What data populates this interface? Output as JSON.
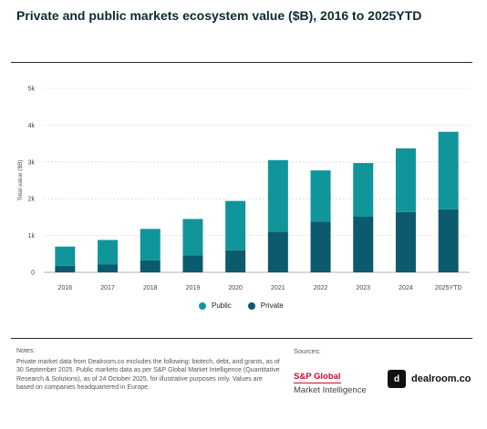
{
  "chart_data": {
    "type": "bar",
    "stacked": true,
    "title": "Private and public markets ecosystem value ($B), 2016 to 2025YTD",
    "xlabel": "",
    "ylabel": "Total value ($B)",
    "ylim": [
      0,
      5000
    ],
    "yticks": [
      0,
      1000,
      2000,
      3000,
      4000,
      5000
    ],
    "ytick_labels": [
      "0",
      "1k",
      "2k",
      "3k",
      "4k",
      "5k"
    ],
    "grid": true,
    "legend_position": "bottom",
    "categories": [
      "2016",
      "2017",
      "2018",
      "2019",
      "2020",
      "2021",
      "2022",
      "2023",
      "2024",
      "2025YTD"
    ],
    "series": [
      {
        "name": "Private",
        "color": "#0c5a6e",
        "values": [
          180,
          210,
          330,
          460,
          600,
          1100,
          1380,
          1510,
          1640,
          1710
        ]
      },
      {
        "name": "Public",
        "color": "#10959b",
        "values": [
          520,
          670,
          850,
          990,
          1340,
          1950,
          1390,
          1460,
          1730,
          2110
        ]
      }
    ]
  },
  "legend": {
    "public_label": "Public",
    "private_label": "Private",
    "public_color": "#10959b",
    "private_color": "#0c5a6e"
  },
  "notes": {
    "title": "Notes:",
    "text": "Private market data from Dealroom.co excludes the following: biotech, debt, and grants, as of 30 September 2025. Public markets data as per S&P Global Market Intelligence (Quantitative Research & Solutions), as of 24 October 2025, for illustrative purposes only. Values are based on companies headquartered in Europe."
  },
  "sources": {
    "title": "Sources:",
    "spg_line1": "S&P Global",
    "spg_line2": "Market Intelligence",
    "dealroom_mark": "d",
    "dealroom_name": "dealroom.co"
  }
}
